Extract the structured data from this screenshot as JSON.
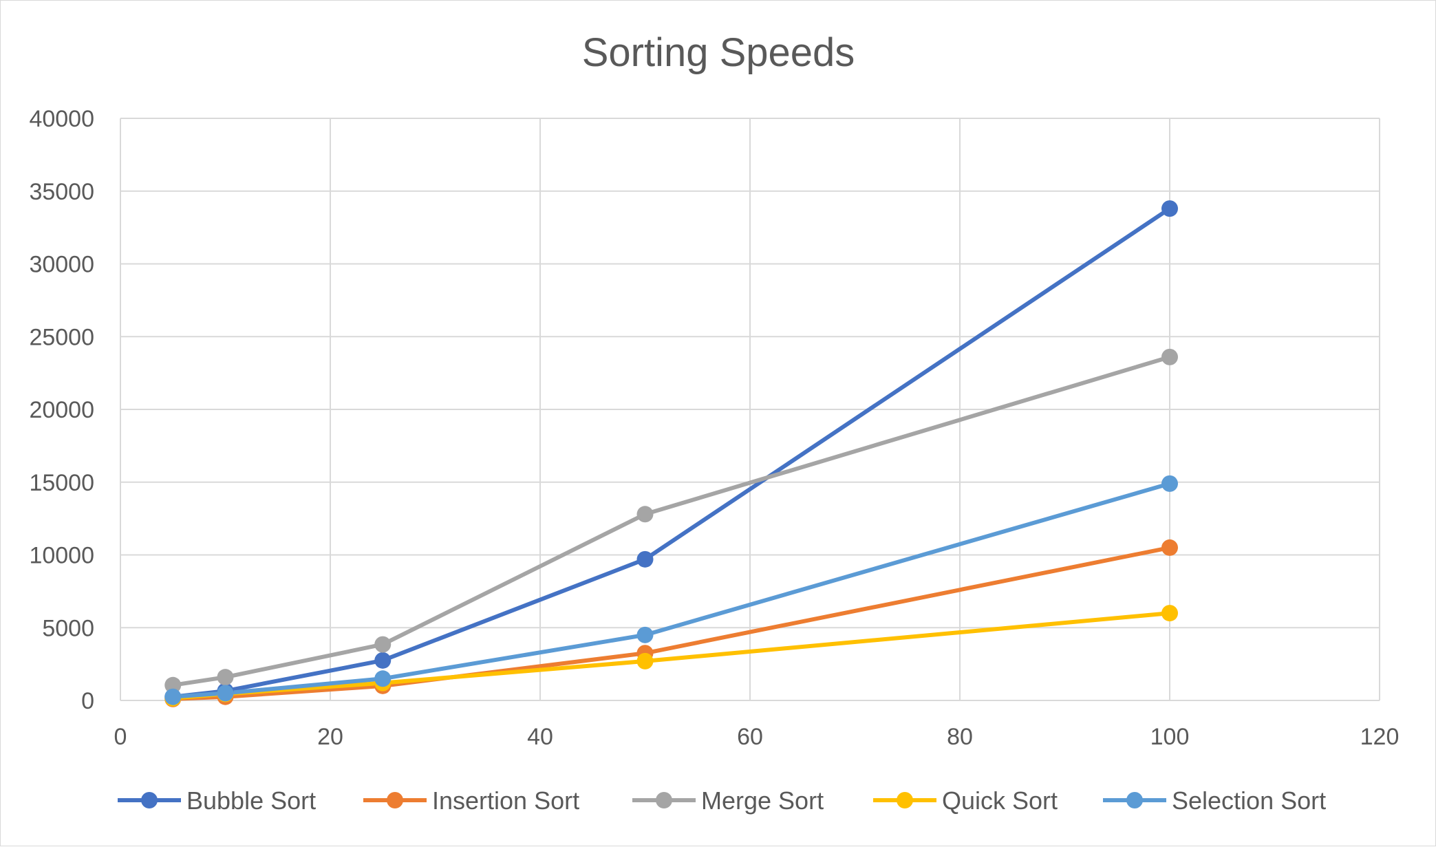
{
  "chart_data": {
    "type": "scatter",
    "title": "Sorting Speeds",
    "xlabel": "",
    "ylabel": "",
    "xlim": [
      0,
      120
    ],
    "ylim": [
      0,
      40000
    ],
    "xticks": [
      0,
      20,
      40,
      60,
      80,
      100,
      120
    ],
    "yticks": [
      0,
      5000,
      10000,
      15000,
      20000,
      25000,
      30000,
      35000,
      40000
    ],
    "grid": true,
    "legend_position": "bottom",
    "x": [
      5,
      10,
      25,
      50,
      100
    ],
    "series": [
      {
        "name": "Bubble Sort",
        "color": "#4472C4",
        "values": [
          250,
          650,
          2750,
          9700,
          33800
        ]
      },
      {
        "name": "Insertion Sort",
        "color": "#ED7D31",
        "values": [
          100,
          250,
          1000,
          3250,
          10500
        ]
      },
      {
        "name": "Merge Sort",
        "color": "#A5A5A5",
        "values": [
          1050,
          1600,
          3850,
          12800,
          23600
        ]
      },
      {
        "name": "Quick Sort",
        "color": "#FFC000",
        "values": [
          150,
          450,
          1200,
          2700,
          6000
        ]
      },
      {
        "name": "Selection Sort",
        "color": "#5B9BD5",
        "values": [
          250,
          500,
          1500,
          4500,
          14900
        ]
      }
    ]
  }
}
